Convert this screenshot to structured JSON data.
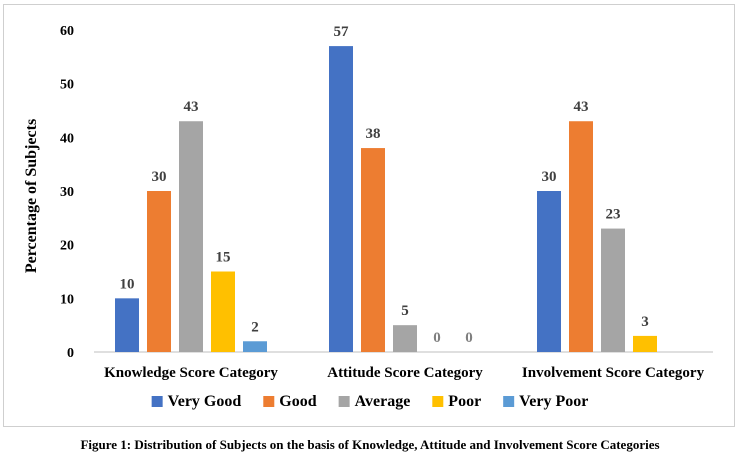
{
  "chart_data": {
    "type": "bar",
    "title": "",
    "xlabel": "",
    "ylabel": "Percentage of Subjects",
    "ylim": [
      0,
      60
    ],
    "yticks": [
      0,
      10,
      20,
      30,
      40,
      50,
      60
    ],
    "grid": false,
    "legend_position": "bottom",
    "categories": [
      "Knowledge Score Category",
      "Attitude Score Category",
      "Involvement Score Category"
    ],
    "series": [
      {
        "name": "Very Good",
        "color": "#4472C4",
        "values": [
          10,
          57,
          30
        ]
      },
      {
        "name": "Good",
        "color": "#ED7D31",
        "values": [
          30,
          38,
          43
        ]
      },
      {
        "name": "Average",
        "color": "#A5A5A5",
        "values": [
          43,
          5,
          23
        ]
      },
      {
        "name": "Poor",
        "color": "#FFC000",
        "values": [
          15,
          0,
          3
        ]
      },
      {
        "name": "Very Poor",
        "color": "#5B9BD5",
        "values": [
          2,
          0,
          null
        ]
      }
    ],
    "data_labels": true,
    "data_label_color": "#595959",
    "axis_line_color": "#BFBFBF"
  },
  "caption": "Figure 1: Distribution of Subjects on the basis of Knowledge, Attitude and Involvement Score Categories"
}
